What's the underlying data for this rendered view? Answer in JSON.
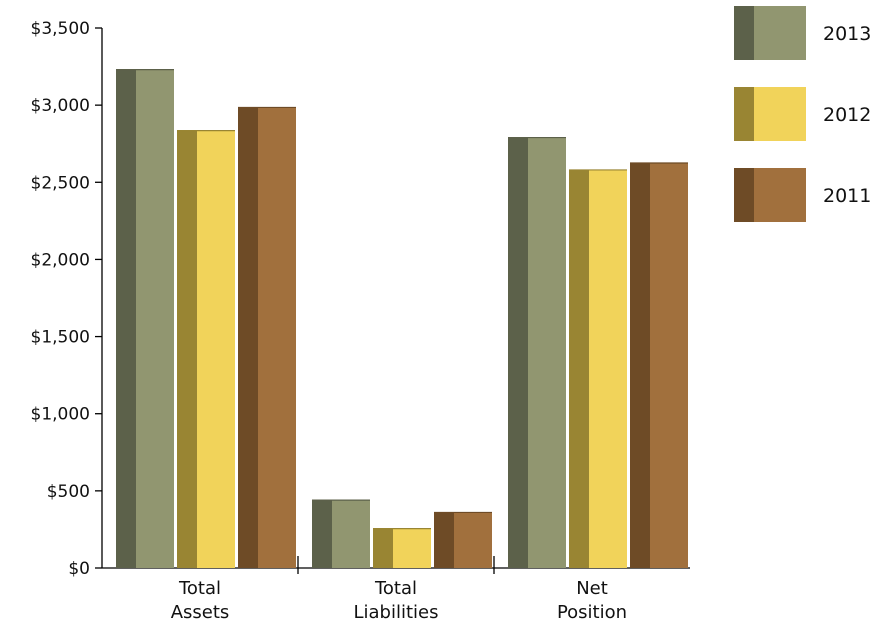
{
  "chart_data": {
    "type": "bar",
    "title": "",
    "xlabel": "",
    "ylabel": "",
    "ylim": [
      0,
      3500
    ],
    "y_ticks": [
      0,
      500,
      1000,
      1500,
      2000,
      2500,
      3000,
      3500
    ],
    "y_tick_labels": [
      "$0",
      "$500",
      "$1,000",
      "$1,500",
      "$2,000",
      "$2,500",
      "$3,000",
      "$3,500"
    ],
    "categories": [
      [
        "Total",
        "Assets"
      ],
      [
        "Total",
        "Liabilities"
      ],
      [
        "Net",
        "Position"
      ]
    ],
    "series": [
      {
        "name": "2013",
        "values": [
          3230,
          440,
          2790
        ],
        "front_color": "#919670",
        "side_color": "#5c614a"
      },
      {
        "name": "2012",
        "values": [
          2835,
          255,
          2580
        ],
        "front_color": "#f1d35a",
        "side_color": "#998533"
      },
      {
        "name": "2011",
        "values": [
          2985,
          360,
          2625
        ],
        "front_color": "#a1703d",
        "side_color": "#6e4b26"
      }
    ],
    "grid": false,
    "style": "3d",
    "legend_position": "top-right"
  }
}
